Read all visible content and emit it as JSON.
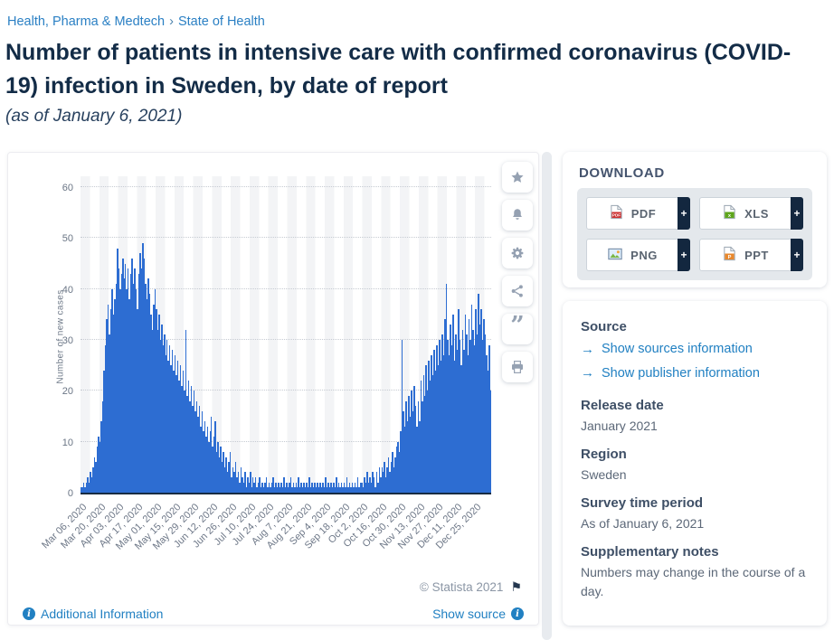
{
  "breadcrumb": {
    "items": [
      {
        "label": "Health, Pharma & Medtech"
      },
      {
        "label": "State of Health"
      }
    ],
    "separator": "›"
  },
  "header": {
    "title": "Number of patients in intensive care with confirmed coronavirus (COVID-19) infection in Sweden, by date of report",
    "subtitle": "(as of January 6, 2021)"
  },
  "toolbar": {
    "icons": [
      {
        "name": "favorite-star-icon"
      },
      {
        "name": "notification-bell-icon"
      },
      {
        "name": "settings-gear-icon"
      },
      {
        "name": "share-icon"
      },
      {
        "name": "citation-quote-icon"
      },
      {
        "name": "print-icon"
      }
    ]
  },
  "chart_data": {
    "type": "bar",
    "title": "Number of patients in intensive care with confirmed coronavirus (COVID-19) infection in Sweden, by date of report (as of January 6, 2021)",
    "xlabel": "",
    "ylabel": "Number of new cases",
    "ylim": [
      0,
      60
    ],
    "yticks": [
      0,
      10,
      20,
      30,
      40,
      50,
      60
    ],
    "grid": "horizontal-dotted",
    "legend": "none",
    "bar_color": "#2d6dd2",
    "x_unit": "day",
    "x_tick_interval_days": 14,
    "x_tick_labels": [
      "Mar 06, 2020",
      "Mar 20, 2020",
      "Apr 03, 2020",
      "Apr 17, 2020",
      "May 01, 2020",
      "May 15, 2020",
      "May 29, 2020",
      "Jun 12, 2020",
      "Jun 26, 2020",
      "Jul 10, 2020",
      "Jul 24, 2020",
      "Aug 7, 2020",
      "Aug 21, 2020",
      "Sep 4, 2020",
      "Sep 18, 2020",
      "Oct 2, 2020",
      "Oct 16, 2020",
      "Oct 30, 2020",
      "Nov 13, 2020",
      "Nov 27, 2020",
      "Dec 11, 2020",
      "Dec 25, 2020"
    ],
    "values": [
      1,
      1,
      2,
      1,
      2,
      3,
      2,
      4,
      3,
      5,
      7,
      6,
      9,
      11,
      10,
      14,
      18,
      24,
      29,
      34,
      37,
      31,
      36,
      40,
      35,
      38,
      41,
      48,
      44,
      40,
      43,
      46,
      42,
      45,
      40,
      44,
      38,
      43,
      46,
      41,
      44,
      40,
      36,
      43,
      47,
      44,
      49,
      46,
      41,
      38,
      42,
      39,
      35,
      32,
      37,
      40,
      36,
      32,
      35,
      30,
      33,
      29,
      31,
      27,
      30,
      26,
      29,
      25,
      28,
      24,
      27,
      23,
      26,
      22,
      25,
      21,
      24,
      20,
      32,
      19,
      22,
      18,
      21,
      17,
      20,
      16,
      18,
      15,
      17,
      13,
      16,
      12,
      14,
      11,
      13,
      10,
      12,
      15,
      9,
      11,
      14,
      8,
      10,
      7,
      9,
      6,
      8,
      5,
      7,
      4,
      6,
      8,
      3,
      5,
      4,
      6,
      3,
      4,
      2,
      5,
      3,
      2,
      4,
      1,
      3,
      2,
      4,
      1,
      3,
      2,
      3,
      1,
      2,
      3,
      1,
      2,
      1,
      2,
      3,
      1,
      2,
      1,
      2,
      3,
      1,
      2,
      1,
      2,
      1,
      2,
      1,
      3,
      1,
      2,
      1,
      2,
      3,
      1,
      2,
      1,
      2,
      1,
      3,
      1,
      2,
      1,
      2,
      1,
      2,
      1,
      3,
      1,
      2,
      1,
      2,
      1,
      2,
      1,
      2,
      1,
      2,
      1,
      3,
      1,
      2,
      1,
      2,
      1,
      2,
      1,
      3,
      1,
      2,
      1,
      2,
      1,
      2,
      1,
      3,
      1,
      2,
      1,
      2,
      1,
      2,
      1,
      3,
      1,
      2,
      2,
      1,
      3,
      2,
      4,
      2,
      3,
      2,
      4,
      3,
      1,
      4,
      2,
      5,
      3,
      5,
      4,
      6,
      3,
      5,
      7,
      4,
      6,
      8,
      5,
      7,
      9,
      10,
      8,
      12,
      30,
      16,
      13,
      18,
      14,
      19,
      15,
      20,
      16,
      21,
      17,
      13,
      18,
      14,
      22,
      18,
      23,
      19,
      25,
      20,
      26,
      22,
      27,
      23,
      28,
      24,
      29,
      25,
      30,
      26,
      31,
      27,
      34,
      41,
      30,
      27,
      33,
      29,
      35,
      26,
      31,
      28,
      36,
      30,
      25,
      32,
      28,
      35,
      31,
      27,
      34,
      30,
      37,
      32,
      29,
      36,
      31,
      39,
      33,
      36,
      30,
      34,
      31,
      27,
      24,
      29,
      20
    ]
  },
  "download": {
    "heading": "DOWNLOAD",
    "plus_label": "+",
    "buttons": [
      {
        "label": "PDF",
        "icon": "pdf-file-icon"
      },
      {
        "label": "XLS",
        "icon": "xls-file-icon"
      },
      {
        "label": "PNG",
        "icon": "png-image-icon"
      },
      {
        "label": "PPT",
        "icon": "ppt-file-icon"
      }
    ]
  },
  "info_panel": {
    "sections": [
      {
        "heading": "Source",
        "links": [
          "Show sources information",
          "Show publisher information"
        ]
      },
      {
        "heading": "Release date",
        "text": "January 2021"
      },
      {
        "heading": "Region",
        "text": "Sweden"
      },
      {
        "heading": "Survey time period",
        "text": "As of January 6, 2021"
      },
      {
        "heading": "Supplementary notes",
        "text": "Numbers may change in the course of a day."
      }
    ]
  },
  "footer": {
    "copyright": "© Statista 2021",
    "additional_info_label": "Additional Information",
    "show_source_label": "Show source"
  },
  "icons": {
    "flag": "⚑",
    "link_arrow": "→",
    "info_letter": "i"
  },
  "colors": {
    "bar": "#2d6dd2",
    "axis": "#182c43",
    "link_blue": "#2180c2",
    "title_navy": "#132c47",
    "plus_block_navy": "#13273f"
  }
}
